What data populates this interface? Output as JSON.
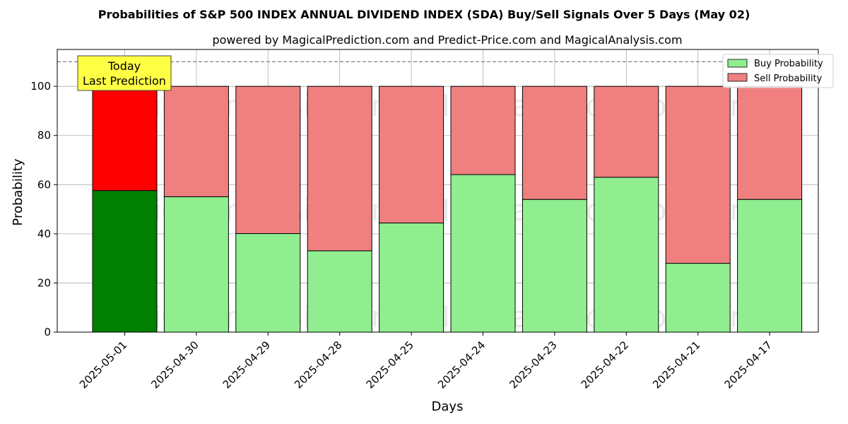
{
  "title": "Probabilities of S&P 500 INDEX ANNUAL DIVIDEND INDEX (SDA) Buy/Sell Signals Over 5 Days (May 02)",
  "subtitle": "powered by MagicalPrediction.com and Predict-Price.com and MagicalAnalysis.com",
  "watermarks": [
    "MagicalAnalysis.com",
    "MagicalPrediction.com"
  ],
  "annotation": {
    "line1": "Today",
    "line2": "Last Prediction",
    "color": "#ffff44"
  },
  "colors": {
    "buy_today": "#008000",
    "sell_today": "#ff0000",
    "buy": "#90ee90",
    "sell": "#f08080"
  },
  "chart_data": {
    "type": "bar",
    "stacked": true,
    "xlabel": "Days",
    "ylabel": "Probability",
    "ylim": [
      0,
      115
    ],
    "yticks": [
      0,
      20,
      40,
      60,
      80,
      100
    ],
    "reference_line": 110,
    "grid": true,
    "legend_position": "top-right",
    "categories": [
      "2025-05-01",
      "2025-04-30",
      "2025-04-29",
      "2025-04-28",
      "2025-04-25",
      "2025-04-24",
      "2025-04-23",
      "2025-04-22",
      "2025-04-21",
      "2025-04-17"
    ],
    "series": [
      {
        "name": "Buy Probability",
        "values": [
          57.6,
          55.1,
          40.1,
          33.1,
          44.4,
          64.1,
          54.0,
          63.0,
          28.0,
          54.0
        ]
      },
      {
        "name": "Sell Probability",
        "values": [
          42.4,
          44.9,
          59.9,
          66.9,
          55.6,
          35.9,
          46.0,
          37.0,
          72.0,
          46.0
        ]
      }
    ]
  }
}
